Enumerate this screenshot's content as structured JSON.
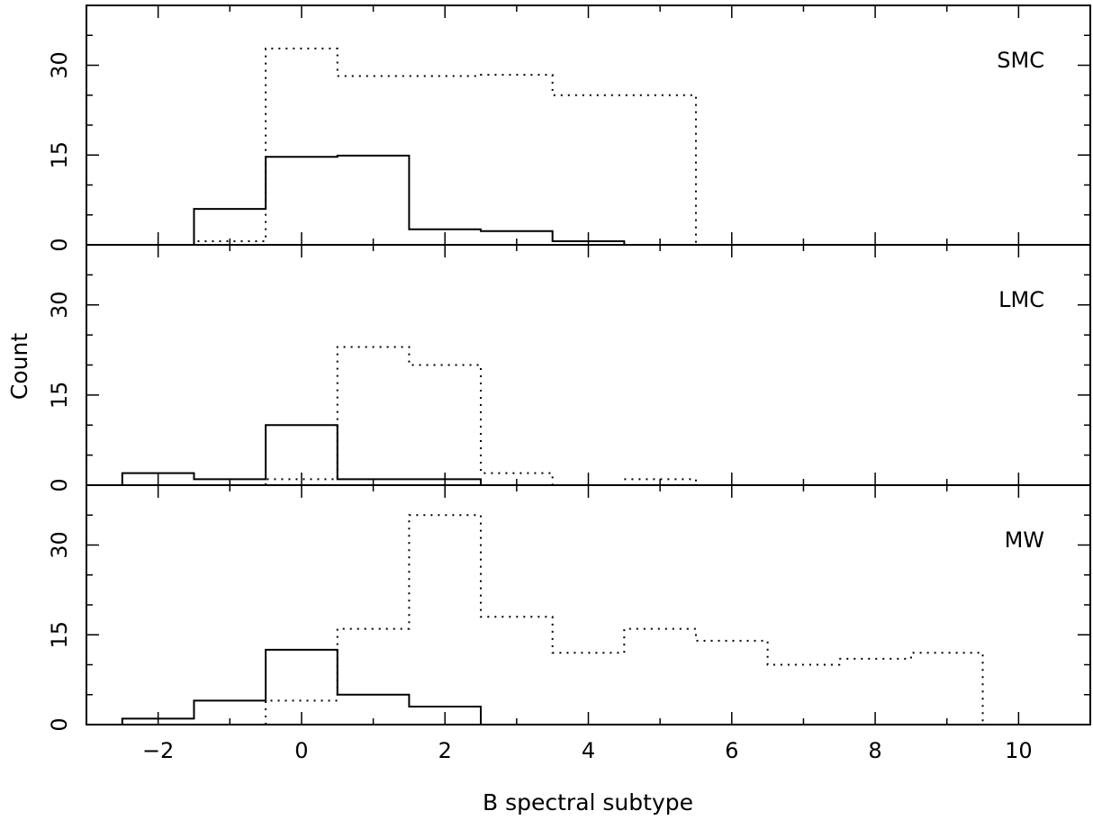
{
  "chart_data": [
    {
      "type": "histogram",
      "panel_label": "SMC",
      "xlabel": "B spectral subtype",
      "ylabel": "Count",
      "xlim": [
        -3,
        11
      ],
      "ylim": [
        0,
        40
      ],
      "x_ticks": [
        -2,
        0,
        2,
        4,
        6,
        8,
        10
      ],
      "y_ticks": [
        0,
        15,
        30
      ],
      "bin_width": 1,
      "series": [
        {
          "style": "solid",
          "bin_centers": [
            -2,
            -1,
            0,
            1,
            2,
            3,
            4
          ],
          "counts": [
            0,
            6,
            14.7,
            14.9,
            2.6,
            2.3,
            0.6
          ]
        },
        {
          "style": "dotted",
          "bin_centers": [
            -1,
            0,
            1,
            2,
            3,
            4,
            5
          ],
          "counts": [
            0.6,
            32.8,
            28.2,
            28.2,
            28.4,
            25,
            25
          ]
        }
      ]
    },
    {
      "type": "histogram",
      "panel_label": "LMC",
      "xlabel": "B spectral subtype",
      "ylabel": "Count",
      "xlim": [
        -3,
        11
      ],
      "ylim": [
        0,
        40
      ],
      "x_ticks": [
        -2,
        0,
        2,
        4,
        6,
        8,
        10
      ],
      "y_ticks": [
        0,
        15,
        30
      ],
      "bin_width": 1,
      "series": [
        {
          "style": "solid",
          "bin_centers": [
            -2,
            -1,
            0,
            1,
            2
          ],
          "counts": [
            2,
            1,
            10,
            1,
            1
          ]
        },
        {
          "style": "dotted",
          "bin_centers": [
            0,
            1,
            2,
            3,
            4,
            5
          ],
          "counts": [
            1,
            23,
            20,
            2,
            0,
            1
          ]
        }
      ]
    },
    {
      "type": "histogram",
      "panel_label": "MW",
      "xlabel": "B spectral subtype",
      "ylabel": "Count",
      "xlim": [
        -3,
        11
      ],
      "ylim": [
        0,
        40
      ],
      "x_ticks": [
        -2,
        0,
        2,
        4,
        6,
        8,
        10
      ],
      "y_ticks": [
        0,
        15,
        30
      ],
      "bin_width": 1,
      "series": [
        {
          "style": "solid",
          "bin_centers": [
            -2,
            -1,
            0,
            1,
            2
          ],
          "counts": [
            1,
            4,
            12.5,
            5,
            3
          ]
        },
        {
          "style": "dotted",
          "bin_centers": [
            0,
            1,
            2,
            3,
            4,
            5,
            6,
            7,
            8,
            9
          ],
          "counts": [
            4,
            16,
            35,
            18,
            12,
            16,
            14,
            10,
            11,
            12
          ]
        }
      ]
    }
  ],
  "labels": {
    "xlabel": "B spectral subtype",
    "ylabel": "Count"
  }
}
